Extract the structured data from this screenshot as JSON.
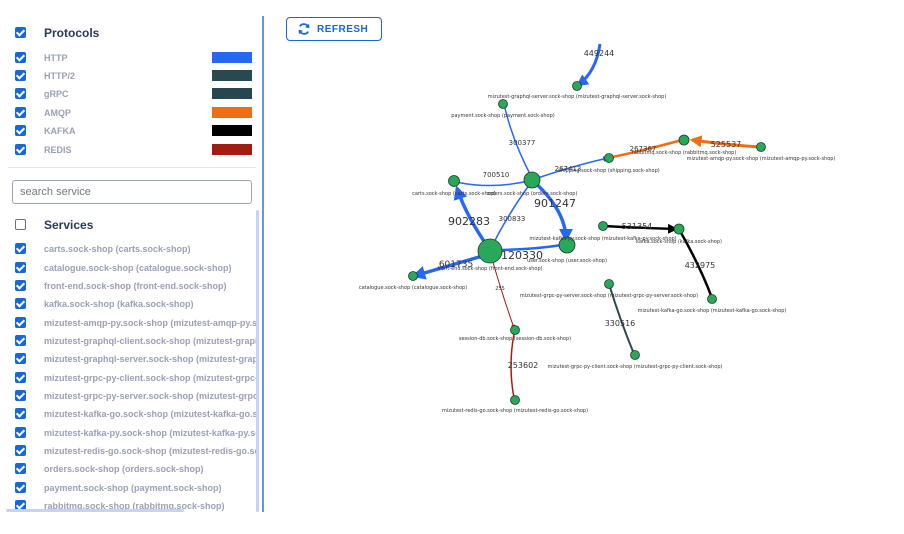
{
  "protocols": {
    "header": "Protocols",
    "items": [
      {
        "label": "HTTP",
        "color": "#2767f5",
        "checked": true
      },
      {
        "label": "HTTP/2",
        "color": "#27494f",
        "checked": true
      },
      {
        "label": "gRPC",
        "color": "#26474d",
        "checked": true
      },
      {
        "label": "AMQP",
        "color": "#f06d12",
        "checked": true
      },
      {
        "label": "KAFKA",
        "color": "#000000",
        "checked": true
      },
      {
        "label": "REDIS",
        "color": "#a31c12",
        "checked": true
      }
    ]
  },
  "search": {
    "placeholder": "search service"
  },
  "services": {
    "header": "Services",
    "items": [
      "carts.sock-shop (carts.sock-shop)",
      "catalogue.sock-shop (catalogue.sock-shop)",
      "front-end.sock-shop (front-end.sock-shop)",
      "kafka.sock-shop (kafka.sock-shop)",
      "mizutest-amqp-py.sock-shop (mizutest-amqp-py.sock-shop)",
      "mizutest-graphql-client.sock-shop (mizutest-graphql-client.sock-shop)",
      "mizutest-graphql-server.sock-shop (mizutest-graphql-server.sock-shop)",
      "mizutest-grpc-py-client.sock-shop (mizutest-grpc-py-client.sock-shop)",
      "mizutest-grpc-py-server.sock-shop (mizutest-grpc-py-server.sock-shop)",
      "mizutest-kafka-go.sock-shop (mizutest-kafka-go.sock-shop)",
      "mizutest-kafka-py.sock-shop (mizutest-kafka-py.sock-shop)",
      "mizutest-redis-go.sock-shop (mizutest-redis-go.sock-shop)",
      "orders.sock-shop (orders.sock-shop)",
      "payment.sock-shop (payment.sock-shop)",
      "rabbitmq.sock-shop (rabbitmq.sock-shop)"
    ]
  },
  "toolbar": {
    "refresh_label": "REFRESH"
  },
  "graph": {
    "nodes": [
      {
        "id": "graphql-server",
        "label": "mizutest-graphql-server.sock-shop (mizutest-graphql-server.sock-shop)"
      },
      {
        "id": "payment",
        "label": "payment.sock-shop (payment.sock-shop)"
      },
      {
        "id": "carts",
        "label": "carts.sock-shop (carts.sock-shop)"
      },
      {
        "id": "orders",
        "label": "orders.sock-shop (orders.sock-shop)"
      },
      {
        "id": "shipping",
        "label": "shipping.sock-shop (shipping.sock-shop)"
      },
      {
        "id": "rabbitmq",
        "label": "rabbitmq.sock-shop (rabbitmq.sock-shop)"
      },
      {
        "id": "amqp-py",
        "label": "mizutest-amqp-py.sock-shop (mizutest-amqp-py.sock-shop)"
      },
      {
        "id": "front-end",
        "label": "front-end.sock-shop (front-end.sock-shop)"
      },
      {
        "id": "user",
        "label": "user.sock-shop (user.sock-shop)"
      },
      {
        "id": "catalogue",
        "label": "catalogue.sock-shop (catalogue.sock-shop)"
      },
      {
        "id": "kafka-py",
        "label": "mizutest-kafka-py.sock-shop (mizutest-kafka-py.sock-shop)"
      },
      {
        "id": "kafka",
        "label": "kafka.sock-shop (kafka.sock-shop)"
      },
      {
        "id": "kafka-go",
        "label": "mizutest-kafka-go.sock-shop (mizutest-kafka-go.sock-shop)"
      },
      {
        "id": "grpc-server",
        "label": "mizutest-grpc-py-server.sock-shop (mizutest-grpc-py-server.sock-shop)"
      },
      {
        "id": "grpc-client",
        "label": "mizutest-grpc-py-client.sock-shop (mizutest-grpc-py-client.sock-shop)"
      },
      {
        "id": "session-db",
        "label": "session-db.sock-shop (session-db.sock-shop)"
      },
      {
        "id": "redis-go",
        "label": "mizutest-redis-go.sock-shop (mizutest-redis-go.sock-shop)"
      }
    ],
    "edges": [
      {
        "label": "449244"
      },
      {
        "label": "300377"
      },
      {
        "label": "700510"
      },
      {
        "label": "267413"
      },
      {
        "label": "267367"
      },
      {
        "label": "525537"
      },
      {
        "label": "902283"
      },
      {
        "label": "300833"
      },
      {
        "label": "901247"
      },
      {
        "label": "120330"
      },
      {
        "label": "601735"
      },
      {
        "label": "531354"
      },
      {
        "label": "432975"
      },
      {
        "label": "330516"
      },
      {
        "label": "255"
      },
      {
        "label": "253602"
      }
    ]
  }
}
